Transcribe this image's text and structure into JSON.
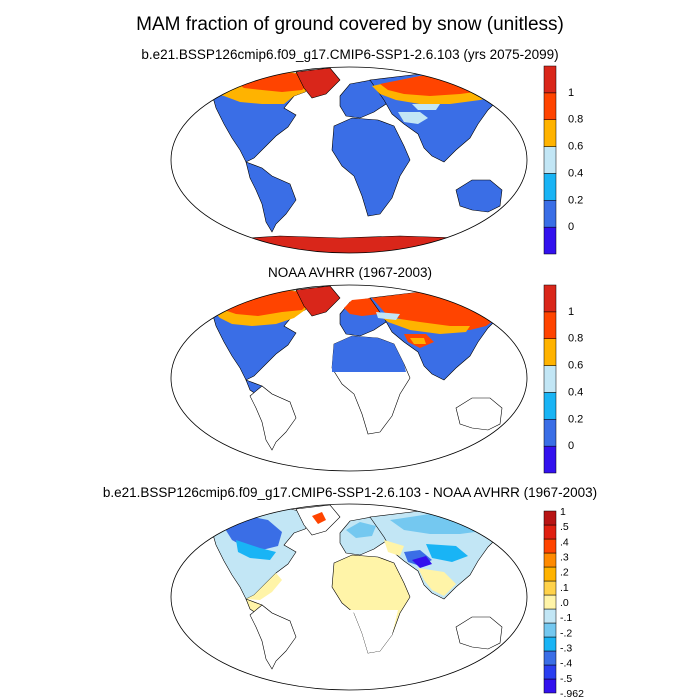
{
  "main_title": "MAM fraction of ground covered by snow (unitless)",
  "panels": [
    {
      "id": "model",
      "title": "b.e21.BSSP126cmip6.f09_g17.CMIP6-SSP1-2.6.103 (yrs 2075-2099)",
      "colorbar": {
        "colors": [
          "#3311ee",
          "#3a6ee6",
          "#19b4f5",
          "#c2e6f5",
          "#ffb300",
          "#ff4400",
          "#d9261a"
        ],
        "labels": [
          "0",
          "0.2",
          "0.4",
          "0.6",
          "0.8",
          "1"
        ]
      }
    },
    {
      "id": "obs",
      "title": "NOAA AVHRR (1967-2003)",
      "colorbar": {
        "colors": [
          "#3311ee",
          "#3a6ee6",
          "#19b4f5",
          "#c2e6f5",
          "#ffb300",
          "#ff4400",
          "#d9261a"
        ],
        "labels": [
          "0",
          "0.2",
          "0.4",
          "0.6",
          "0.8",
          "1"
        ]
      }
    },
    {
      "id": "diff",
      "title": "b.e21.BSSP126cmip6.f09_g17.CMIP6-SSP1-2.6.103 - NOAA AVHRR (1967-2003)",
      "colorbar": {
        "colors": [
          "#3311ee",
          "#2a3ef0",
          "#3a6ee6",
          "#19b4f5",
          "#74c8f0",
          "#c2e6f5",
          "#fff4a8",
          "#ffd24a",
          "#ffb300",
          "#ff8a00",
          "#ff4400",
          "#e02010",
          "#b81414"
        ],
        "labels": [
          "1",
          ".5",
          ".4",
          ".3",
          ".2",
          ".1",
          ".0",
          "-.1",
          "-.2",
          "-.3",
          "-.4",
          "-.5",
          "-.962"
        ]
      }
    }
  ],
  "colors": {
    "land_nosnow": "#3a6ee6",
    "ocean": "#ffffff",
    "diff_land": "#fff4a8"
  }
}
